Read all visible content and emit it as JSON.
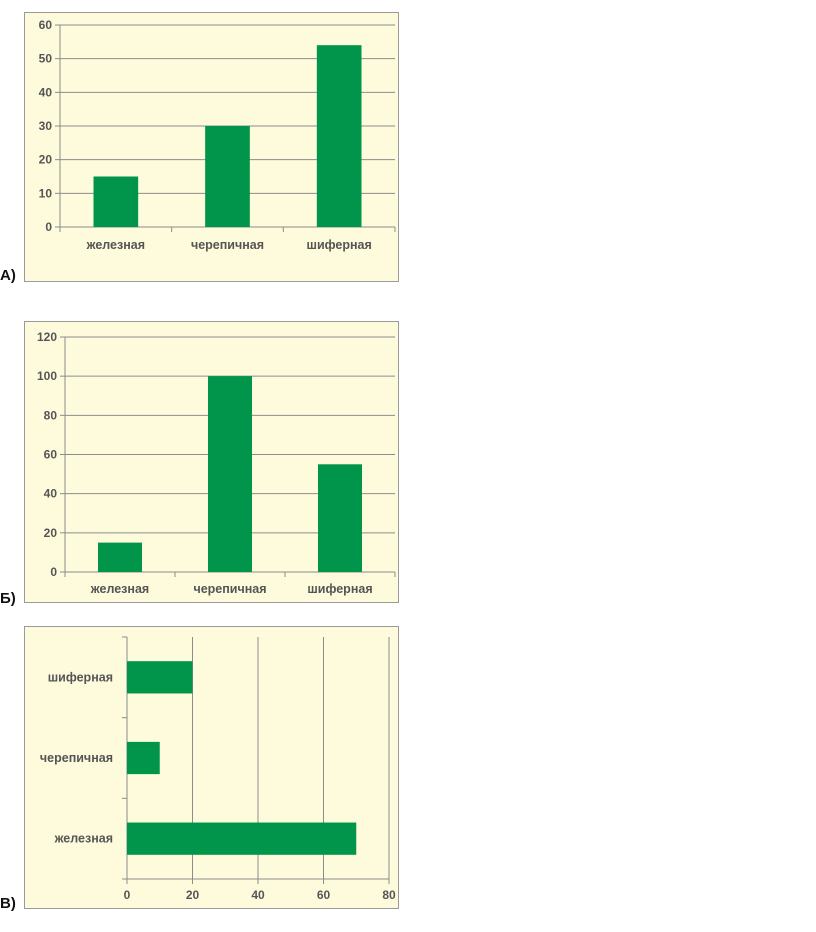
{
  "panels": {
    "a": {
      "label": "А)"
    },
    "b": {
      "label": "Б)"
    },
    "c": {
      "label": "В)"
    }
  },
  "colors": {
    "bar": "#00954a",
    "background": "#fdfbdc",
    "grid": "#8c8c8c",
    "text": "#555555"
  },
  "chart_data": [
    {
      "id": "a",
      "type": "bar",
      "orientation": "vertical",
      "categories": [
        "железная",
        "черепичная",
        "шиферная"
      ],
      "values": [
        15,
        30,
        54
      ],
      "ylim": [
        0,
        60
      ],
      "yticks": [
        0,
        10,
        20,
        30,
        40,
        50,
        60
      ],
      "title": "",
      "xlabel": "",
      "ylabel": "",
      "grid": true,
      "legend": "none"
    },
    {
      "id": "b",
      "type": "bar",
      "orientation": "vertical",
      "categories": [
        "железная",
        "черепичная",
        "шиферная"
      ],
      "values": [
        15,
        100,
        55
      ],
      "ylim": [
        0,
        120
      ],
      "yticks": [
        0,
        20,
        40,
        60,
        80,
        100,
        120
      ],
      "title": "",
      "xlabel": "",
      "ylabel": "",
      "grid": true,
      "legend": "none"
    },
    {
      "id": "c",
      "type": "bar",
      "orientation": "horizontal",
      "categories": [
        "железная",
        "черепичная",
        "шиферная"
      ],
      "values": [
        70,
        10,
        20
      ],
      "xlim": [
        0,
        80
      ],
      "xticks": [
        0,
        20,
        40,
        60,
        80
      ],
      "title": "",
      "xlabel": "",
      "ylabel": "",
      "grid": true,
      "legend": "none"
    }
  ]
}
